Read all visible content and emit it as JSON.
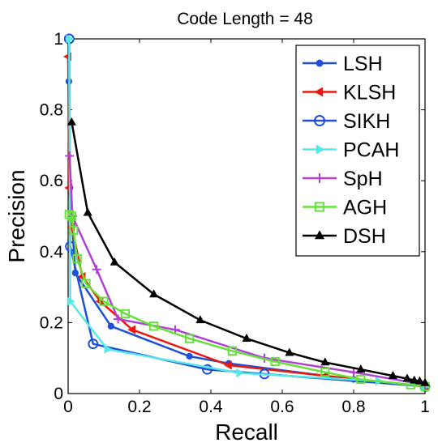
{
  "chart_data": {
    "type": "line",
    "title": "Code Length = 48",
    "xlabel": "Recall",
    "ylabel": "Precision",
    "xlim": [
      0,
      1
    ],
    "ylim": [
      0,
      1
    ],
    "xticks": [
      0,
      0.2,
      0.4,
      0.6,
      0.8,
      1
    ],
    "yticks": [
      0,
      0.2,
      0.4,
      0.6,
      0.8,
      1
    ],
    "xtick_labels": [
      "0",
      "0.2",
      "0.4",
      "0.6",
      "0.8",
      "1"
    ],
    "ytick_labels": [
      "0",
      "0.2",
      "0.4",
      "0.6",
      "0.8",
      "1"
    ],
    "grid": false,
    "legend_position": "top-right",
    "series": [
      {
        "name": "LSH",
        "color": "#1f4fd6",
        "marker": "dot",
        "x": [
          0.002,
          0.005,
          0.02,
          0.12,
          0.34,
          0.45,
          0.8,
          1.0
        ],
        "y": [
          0.88,
          0.58,
          0.34,
          0.19,
          0.105,
          0.085,
          0.04,
          0.02
        ]
      },
      {
        "name": "KLSH",
        "color": "#e8190f",
        "marker": "triangle-left",
        "x": [
          0.0,
          0.003,
          0.01,
          0.04,
          0.09,
          0.18,
          0.45,
          0.72,
          1.0
        ],
        "y": [
          0.95,
          0.58,
          0.47,
          0.33,
          0.26,
          0.18,
          0.08,
          0.05,
          0.02
        ]
      },
      {
        "name": "SIKH",
        "color": "#1f4fd6",
        "marker": "circle",
        "x": [
          0.003,
          0.006,
          0.07,
          0.39,
          0.55,
          1.0
        ],
        "y": [
          1.0,
          0.415,
          0.14,
          0.068,
          0.055,
          0.02
        ]
      },
      {
        "name": "PCAH",
        "color": "#55e8e8",
        "marker": "triangle-right",
        "x": [
          0.003,
          0.006,
          0.11,
          0.48,
          0.87,
          1.0
        ],
        "y": [
          1.0,
          0.26,
          0.125,
          0.058,
          0.035,
          0.02
        ]
      },
      {
        "name": "SpH",
        "color": "#b040d8",
        "marker": "plus",
        "x": [
          0.004,
          0.012,
          0.08,
          0.14,
          0.3,
          0.55,
          0.8,
          1.0
        ],
        "y": [
          0.67,
          0.5,
          0.35,
          0.21,
          0.18,
          0.1,
          0.06,
          0.025
        ]
      },
      {
        "name": "AGH",
        "color": "#66e03a",
        "marker": "square",
        "x": [
          0.003,
          0.01,
          0.015,
          0.025,
          0.05,
          0.1,
          0.16,
          0.24,
          0.34,
          0.46,
          0.58,
          0.72,
          0.82,
          0.96,
          1.0
        ],
        "y": [
          0.505,
          0.5,
          0.46,
          0.38,
          0.31,
          0.26,
          0.225,
          0.19,
          0.155,
          0.12,
          0.09,
          0.06,
          0.04,
          0.025,
          0.02
        ]
      },
      {
        "name": "DSH",
        "color": "#000000",
        "marker": "triangle-up",
        "x": [
          0.01,
          0.055,
          0.13,
          0.24,
          0.37,
          0.5,
          0.62,
          0.72,
          0.82,
          0.91,
          0.95,
          0.97,
          0.985,
          1.0
        ],
        "y": [
          0.765,
          0.51,
          0.37,
          0.28,
          0.207,
          0.155,
          0.115,
          0.088,
          0.068,
          0.05,
          0.042,
          0.037,
          0.035,
          0.03
        ]
      }
    ]
  }
}
